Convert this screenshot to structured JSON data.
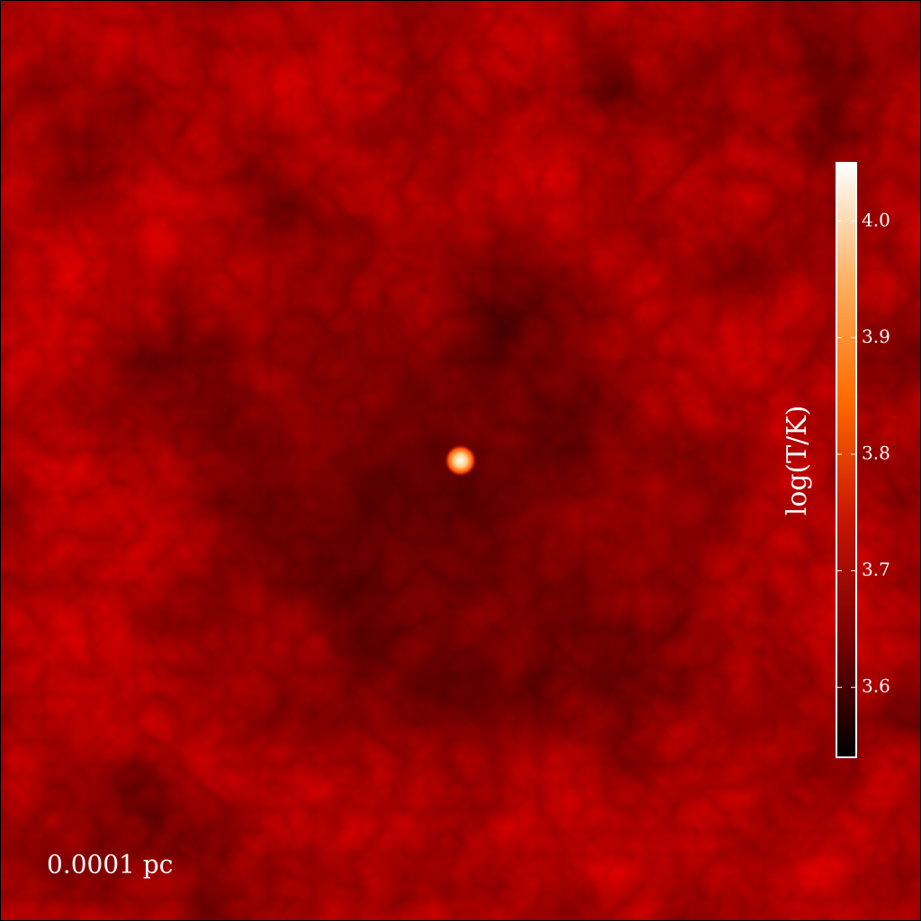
{
  "chart_data": {
    "type": "heatmap",
    "colorbar_label": "log(T/K)",
    "clim": [
      3.54,
      4.05
    ],
    "cticks": [
      {
        "value": 3.6,
        "label": "3.6"
      },
      {
        "value": 3.7,
        "label": "3.7"
      },
      {
        "value": 3.8,
        "label": "3.8"
      },
      {
        "value": 3.9,
        "label": "3.9"
      },
      {
        "value": 4.0,
        "label": "4.0"
      }
    ],
    "colormap": [
      "#000000",
      "#7a0000",
      "#c81400",
      "#ff6a00",
      "#ffb060",
      "#ffffff"
    ],
    "annotation": "0.0001 pc"
  }
}
